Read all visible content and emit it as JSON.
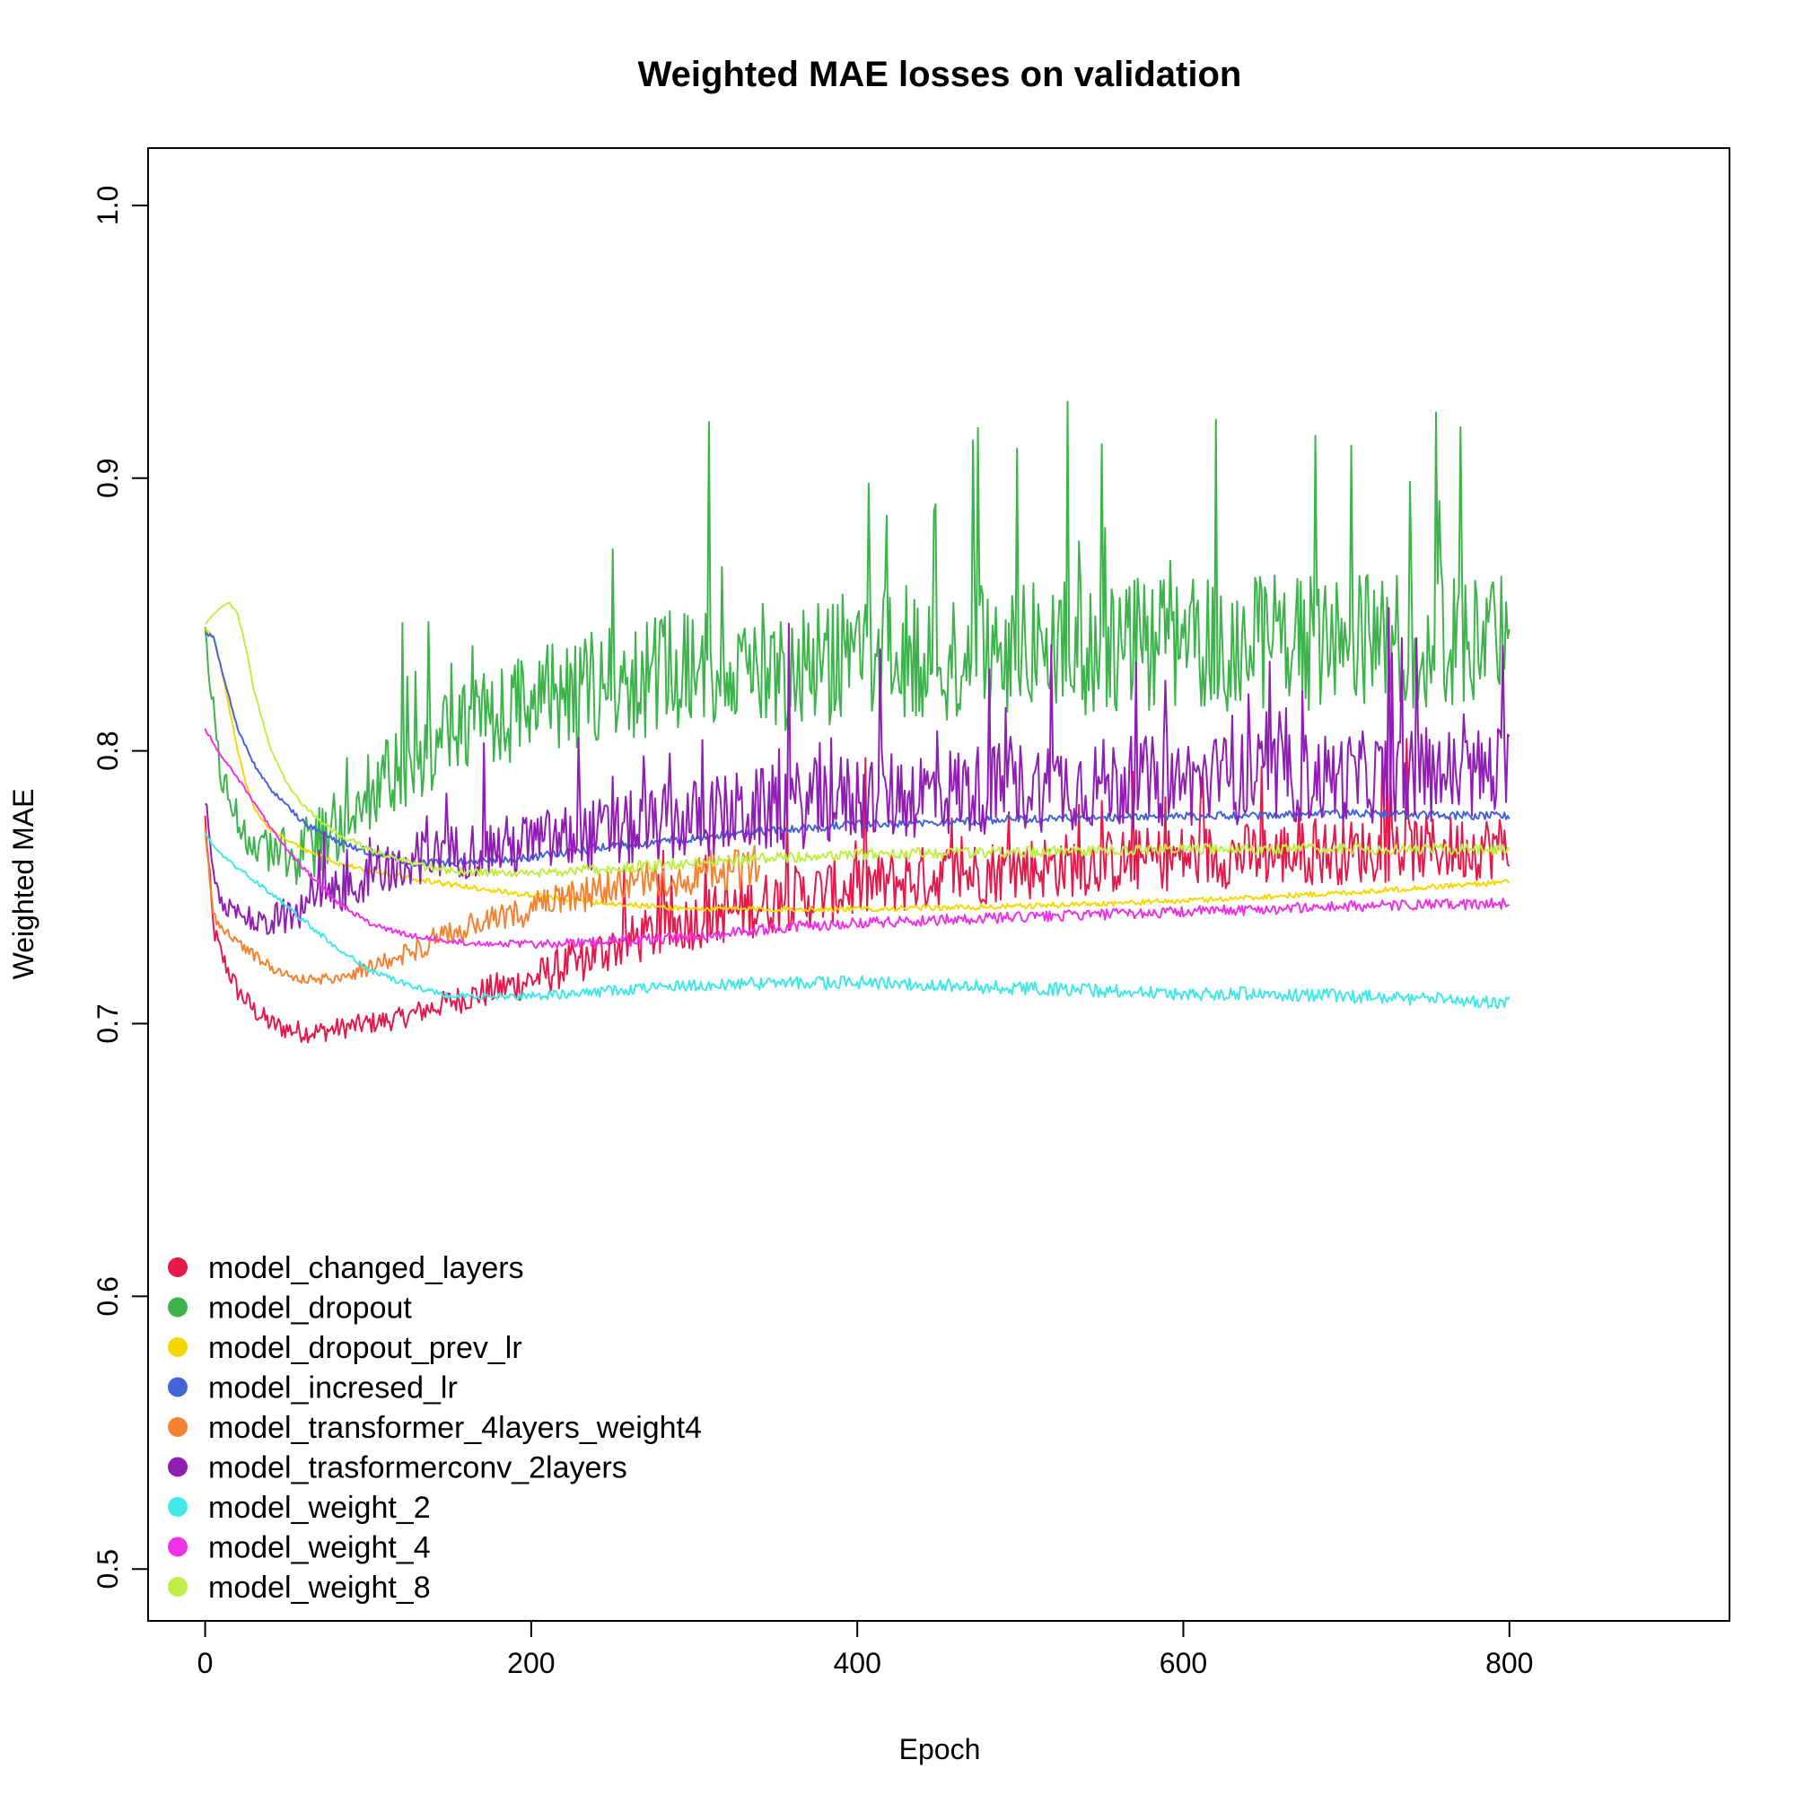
{
  "chart_data": {
    "type": "line",
    "title": "Weighted MAE losses on validation",
    "xlabel": "Epoch",
    "ylabel": "Weighted MAE",
    "xlim": [
      -35,
      935
    ],
    "ylim": [
      0.481,
      1.021
    ],
    "x_ticks": [
      0,
      200,
      400,
      600,
      800
    ],
    "x_tick_labels": [
      "0",
      "200",
      "400",
      "600",
      "800"
    ],
    "y_ticks": [
      0.5,
      0.6,
      0.7,
      0.8,
      0.9,
      1.0
    ],
    "y_tick_labels": [
      "0.5",
      "0.6",
      "0.7",
      "0.8",
      "0.9",
      "1.0"
    ],
    "grid": false,
    "legend_position": "bottom-left",
    "series": [
      {
        "name": "model_changed_layers",
        "color": "#e6194b",
        "x": [
          0,
          5,
          10,
          20,
          30,
          40,
          50,
          60,
          70,
          80,
          100,
          120,
          150,
          200,
          250,
          300,
          350,
          400,
          450,
          500,
          550,
          600,
          650,
          700,
          750,
          800
        ],
        "y": [
          0.775,
          0.735,
          0.725,
          0.712,
          0.705,
          0.7,
          0.698,
          0.697,
          0.697,
          0.698,
          0.7,
          0.702,
          0.708,
          0.716,
          0.728,
          0.738,
          0.745,
          0.75,
          0.754,
          0.757,
          0.759,
          0.761,
          0.762,
          0.763,
          0.764,
          0.765
        ],
        "noise": [
          0.004,
          0.004,
          0.004,
          0.004,
          0.004,
          0.004,
          0.004,
          0.004,
          0.004,
          0.004,
          0.004,
          0.004,
          0.005,
          0.007,
          0.009,
          0.011,
          0.012,
          0.012,
          0.012,
          0.012,
          0.012,
          0.012,
          0.012,
          0.012,
          0.012,
          0.012
        ]
      },
      {
        "name": "model_dropout",
        "color": "#3cb44b",
        "x": [
          0,
          10,
          20,
          30,
          40,
          50,
          60,
          80,
          100,
          150,
          200,
          250,
          300,
          350,
          400,
          450,
          500,
          550,
          600,
          650,
          700,
          750,
          800
        ],
        "y": [
          0.84,
          0.79,
          0.775,
          0.766,
          0.762,
          0.761,
          0.763,
          0.772,
          0.785,
          0.805,
          0.818,
          0.825,
          0.83,
          0.832,
          0.835,
          0.836,
          0.837,
          0.838,
          0.839,
          0.84,
          0.84,
          0.84,
          0.84
        ],
        "noise": [
          0.006,
          0.006,
          0.007,
          0.008,
          0.009,
          0.01,
          0.012,
          0.013,
          0.015,
          0.017,
          0.02,
          0.022,
          0.024,
          0.025,
          0.025,
          0.025,
          0.025,
          0.025,
          0.025,
          0.025,
          0.025,
          0.025,
          0.025
        ]
      },
      {
        "name": "model_dropout_prev_lr",
        "color": "#f5d800",
        "x": [
          0,
          5,
          10,
          15,
          20,
          25,
          30,
          40,
          60,
          80,
          100,
          150,
          200,
          250,
          300,
          350,
          400,
          500,
          600,
          700,
          800
        ],
        "y": [
          0.845,
          0.842,
          0.83,
          0.815,
          0.8,
          0.788,
          0.779,
          0.771,
          0.764,
          0.759,
          0.756,
          0.751,
          0.747,
          0.744,
          0.742,
          0.742,
          0.742,
          0.743,
          0.745,
          0.748,
          0.752
        ],
        "noise": [
          0.0005,
          0.0005,
          0.0005,
          0.0005,
          0.0005,
          0.0005,
          0.0005,
          0.0005,
          0.0008,
          0.001,
          0.001,
          0.001,
          0.001,
          0.001,
          0.001,
          0.001,
          0.001,
          0.001,
          0.001,
          0.001,
          0.001
        ]
      },
      {
        "name": "model_incresed_lr",
        "color": "#4363d8",
        "x": [
          0,
          5,
          10,
          20,
          30,
          40,
          60,
          80,
          100,
          130,
          150,
          200,
          250,
          300,
          350,
          400,
          500,
          600,
          700,
          800
        ],
        "y": [
          0.843,
          0.842,
          0.83,
          0.808,
          0.795,
          0.786,
          0.774,
          0.767,
          0.763,
          0.759,
          0.759,
          0.761,
          0.765,
          0.768,
          0.771,
          0.773,
          0.775,
          0.776,
          0.777,
          0.776
        ],
        "noise": [
          0.0005,
          0.0005,
          0.0005,
          0.0005,
          0.0008,
          0.0008,
          0.001,
          0.001,
          0.0015,
          0.0015,
          0.0015,
          0.0015,
          0.0015,
          0.0015,
          0.0015,
          0.0015,
          0.0015,
          0.0015,
          0.0015,
          0.0015
        ]
      },
      {
        "name": "model_transformer_4layers_weight4",
        "color": "#f58231",
        "x": [
          0,
          5,
          10,
          20,
          30,
          40,
          50,
          60,
          70,
          80,
          100,
          120,
          150,
          200,
          250,
          300,
          340
        ],
        "y": [
          0.77,
          0.74,
          0.735,
          0.73,
          0.725,
          0.721,
          0.718,
          0.716,
          0.716,
          0.717,
          0.72,
          0.725,
          0.733,
          0.742,
          0.75,
          0.755,
          0.758
        ],
        "noise": [
          0.002,
          0.002,
          0.002,
          0.002,
          0.002,
          0.002,
          0.002,
          0.002,
          0.002,
          0.002,
          0.003,
          0.004,
          0.005,
          0.006,
          0.007,
          0.008,
          0.008
        ]
      },
      {
        "name": "model_trasformerconv_2layers",
        "color": "#911eb4",
        "x": [
          0,
          5,
          10,
          20,
          30,
          40,
          60,
          80,
          100,
          120,
          150,
          200,
          250,
          300,
          350,
          400,
          450,
          500,
          550,
          600,
          650,
          700,
          750,
          800
        ],
        "y": [
          0.783,
          0.755,
          0.745,
          0.74,
          0.738,
          0.738,
          0.742,
          0.748,
          0.755,
          0.76,
          0.763,
          0.766,
          0.77,
          0.775,
          0.779,
          0.783,
          0.785,
          0.787,
          0.788,
          0.789,
          0.79,
          0.79,
          0.791,
          0.792
        ],
        "noise": [
          0.003,
          0.003,
          0.004,
          0.004,
          0.005,
          0.006,
          0.008,
          0.009,
          0.01,
          0.01,
          0.01,
          0.012,
          0.014,
          0.015,
          0.016,
          0.017,
          0.017,
          0.017,
          0.017,
          0.017,
          0.017,
          0.017,
          0.017,
          0.018
        ]
      },
      {
        "name": "model_weight_2",
        "color": "#42e8e8",
        "x": [
          0,
          5,
          10,
          20,
          40,
          60,
          80,
          100,
          120,
          150,
          200,
          250,
          300,
          350,
          400,
          450,
          500,
          550,
          600,
          650,
          700,
          750,
          800
        ],
        "y": [
          0.77,
          0.765,
          0.762,
          0.757,
          0.748,
          0.738,
          0.728,
          0.72,
          0.715,
          0.71,
          0.71,
          0.712,
          0.714,
          0.715,
          0.715,
          0.714,
          0.713,
          0.712,
          0.711,
          0.711,
          0.71,
          0.709,
          0.708
        ],
        "noise": [
          0.0005,
          0.0005,
          0.0005,
          0.0008,
          0.001,
          0.001,
          0.001,
          0.001,
          0.001,
          0.001,
          0.0015,
          0.002,
          0.002,
          0.0025,
          0.0025,
          0.0025,
          0.0025,
          0.0025,
          0.0025,
          0.0025,
          0.0025,
          0.0025,
          0.0025
        ]
      },
      {
        "name": "model_weight_4",
        "color": "#f032e6",
        "x": [
          0,
          5,
          10,
          20,
          30,
          40,
          50,
          60,
          80,
          100,
          120,
          150,
          200,
          250,
          300,
          350,
          400,
          450,
          500,
          600,
          700,
          800
        ],
        "y": [
          0.808,
          0.803,
          0.798,
          0.79,
          0.781,
          0.772,
          0.764,
          0.757,
          0.745,
          0.737,
          0.733,
          0.73,
          0.729,
          0.73,
          0.732,
          0.735,
          0.737,
          0.738,
          0.739,
          0.741,
          0.743,
          0.744
        ],
        "noise": [
          0.0005,
          0.0005,
          0.0005,
          0.0005,
          0.0005,
          0.0005,
          0.0005,
          0.0008,
          0.001,
          0.001,
          0.001,
          0.001,
          0.0015,
          0.002,
          0.002,
          0.002,
          0.002,
          0.002,
          0.002,
          0.002,
          0.002,
          0.002
        ]
      },
      {
        "name": "model_weight_8",
        "color": "#bfef45",
        "x": [
          0,
          5,
          10,
          15,
          20,
          25,
          30,
          40,
          50,
          60,
          80,
          100,
          130,
          150,
          200,
          250,
          300,
          350,
          400,
          500,
          600,
          700,
          800
        ],
        "y": [
          0.846,
          0.85,
          0.853,
          0.854,
          0.85,
          0.838,
          0.822,
          0.801,
          0.788,
          0.78,
          0.77,
          0.764,
          0.758,
          0.756,
          0.755,
          0.757,
          0.759,
          0.761,
          0.762,
          0.763,
          0.764,
          0.764,
          0.764
        ],
        "noise": [
          0.0005,
          0.0005,
          0.0005,
          0.0005,
          0.0005,
          0.0005,
          0.0005,
          0.0005,
          0.0005,
          0.0008,
          0.001,
          0.001,
          0.0015,
          0.0015,
          0.0015,
          0.002,
          0.002,
          0.002,
          0.002,
          0.002,
          0.002,
          0.002,
          0.002
        ]
      }
    ]
  }
}
